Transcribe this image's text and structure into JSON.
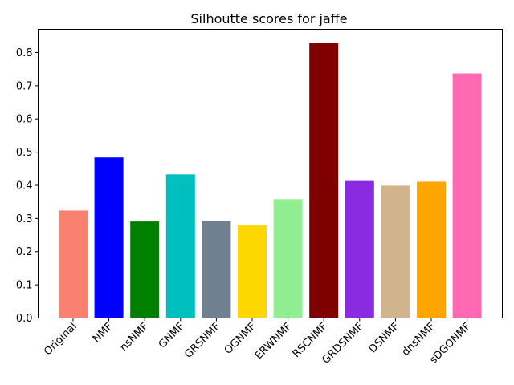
{
  "chart_data": {
    "type": "bar",
    "title": "Silhoutte scores for jaffe",
    "xlabel": "",
    "ylabel": "",
    "ylim": [
      0,
      0.87
    ],
    "yticks": [
      0.0,
      0.1,
      0.2,
      0.3,
      0.4,
      0.5,
      0.6,
      0.7,
      0.8
    ],
    "ytick_labels": [
      "0.0",
      "0.1",
      "0.2",
      "0.3",
      "0.4",
      "0.5",
      "0.6",
      "0.7",
      "0.8"
    ],
    "categories": [
      "Original",
      "NMF",
      "nsNMF",
      "GNMF",
      "GRSNMF",
      "OGNMF",
      "ERWNMF",
      "RSCNMF",
      "GRDSNMF",
      "DSNMF",
      "dnsNMF",
      "sDGONMF"
    ],
    "values": [
      0.324,
      0.484,
      0.291,
      0.433,
      0.293,
      0.279,
      0.358,
      0.828,
      0.413,
      0.399,
      0.411,
      0.737
    ],
    "colors": [
      "#fa8072",
      "#0000ff",
      "#008000",
      "#00bfbf",
      "#708090",
      "#ffd700",
      "#90ee90",
      "#800000",
      "#8a2be2",
      "#d2b48c",
      "#ffa500",
      "#ff69b4"
    ],
    "grid": false,
    "legend": "none"
  }
}
